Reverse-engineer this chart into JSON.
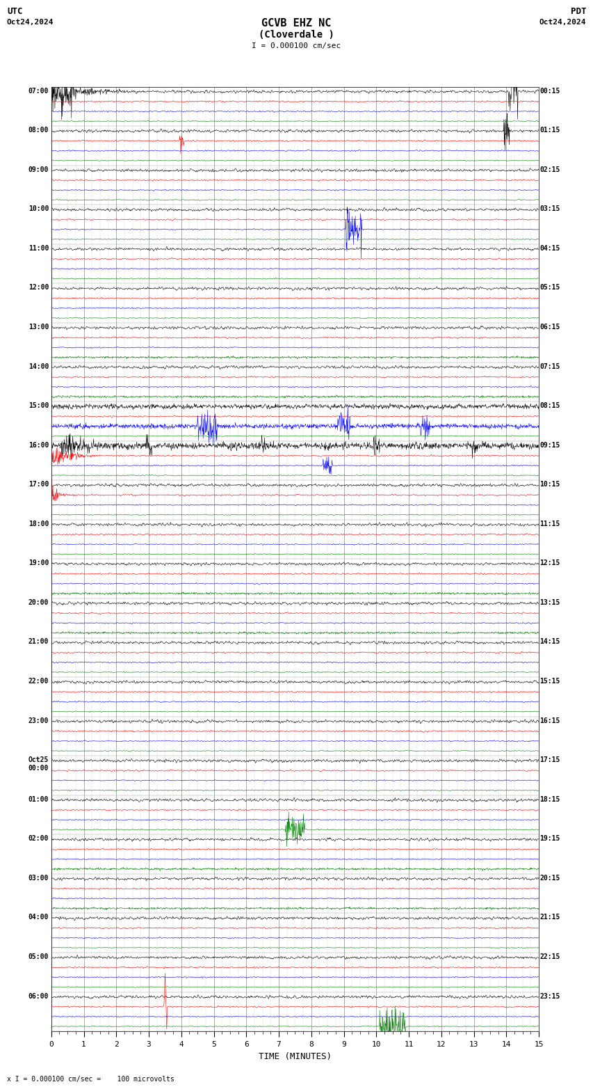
{
  "title_line1": "GCVB EHZ NC",
  "title_line2": "(Cloverdale )",
  "scale_label": "I = 0.000100 cm/sec",
  "top_left_label1": "UTC",
  "top_left_label2": "Oct24,2024",
  "top_right_label1": "PDT",
  "top_right_label2": "Oct24,2024",
  "xlabel": "TIME (MINUTES)",
  "bottom_note": "x I = 0.000100 cm/sec =    100 microvolts",
  "xmin": 0,
  "xmax": 15,
  "background_color": "#ffffff",
  "trace_colors": [
    "black",
    "red",
    "blue",
    "green"
  ],
  "utc_labels": [
    "07:00",
    "08:00",
    "09:00",
    "10:00",
    "11:00",
    "12:00",
    "13:00",
    "14:00",
    "15:00",
    "16:00",
    "17:00",
    "18:00",
    "19:00",
    "20:00",
    "21:00",
    "22:00",
    "23:00",
    "Oct25\n00:00",
    "01:00",
    "02:00",
    "03:00",
    "04:00",
    "05:00",
    "06:00"
  ],
  "pdt_labels": [
    "00:15",
    "01:15",
    "02:15",
    "03:15",
    "04:15",
    "05:15",
    "06:15",
    "07:15",
    "08:15",
    "09:15",
    "10:15",
    "11:15",
    "12:15",
    "13:15",
    "14:15",
    "15:15",
    "16:15",
    "17:15",
    "18:15",
    "19:15",
    "20:15",
    "21:15",
    "22:15",
    "23:15"
  ],
  "n_rows": 24,
  "traces_per_row": 4,
  "noise_scale": [
    0.3,
    0.15,
    0.12,
    0.1
  ],
  "fig_width": 8.5,
  "fig_height": 15.84,
  "dpi": 100
}
